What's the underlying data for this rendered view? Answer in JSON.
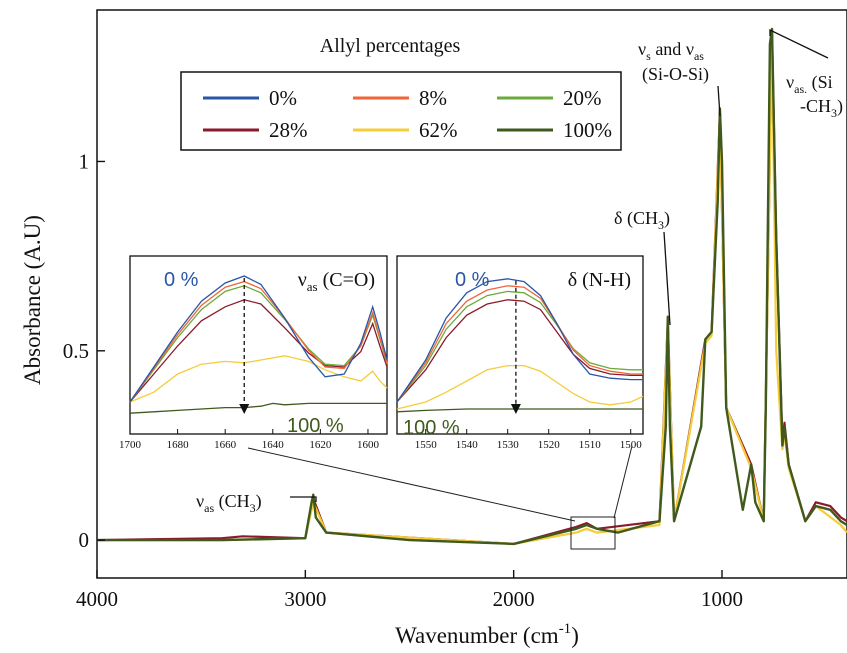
{
  "chart_data": {
    "type": "line",
    "xlabel": "Wavenumber (cm",
    "xlabel_sup": "-1",
    "ylabel": "Absorbance (A.U)",
    "x_reversed": true,
    "xlim": [
      4000,
      400
    ],
    "ylim": [
      -0.1,
      1.4
    ],
    "xticks": [
      4000,
      3000,
      2000,
      1000
    ],
    "yticks": [
      0,
      0.5,
      1
    ],
    "ytick_labels": [
      "0",
      "0.5",
      "1"
    ],
    "legend": {
      "title": "Allyl percentages",
      "placement": "top-center",
      "entries": [
        {
          "label": "0%",
          "color": "#2a56a6"
        },
        {
          "label": "8%",
          "color": "#f0663a"
        },
        {
          "label": "20%",
          "color": "#6aab3c"
        },
        {
          "label": "28%",
          "color": "#8b1a2b"
        },
        {
          "label": "62%",
          "color": "#f5cc3a"
        },
        {
          "label": "100%",
          "color": "#3f5a1c"
        }
      ]
    },
    "annotations": {
      "vas_ch3": {
        "sym": "ν",
        "sub": "as",
        "rest": " (CH",
        "sub2": "3",
        "end": ")"
      },
      "delta_ch3": {
        "sym": "δ",
        "rest": " (CH",
        "sub2": "3",
        "end": ")"
      },
      "vs_vas_line1": {
        "sym": "ν",
        "sub": "s",
        "mid": " and ",
        "sym2": "ν",
        "sub2": "as"
      },
      "vs_vas_line2": "(Si-O-Si)",
      "vas_si_line1": {
        "sym": "ν",
        "sub": "as.",
        "rest": " (Si"
      },
      "vas_si_line2": {
        "pre": "-CH",
        "sub": "3",
        "end": ")"
      }
    },
    "series": [
      {
        "name": "100%",
        "color": "#3f5a1c",
        "x": [
          4000,
          3400,
          3000,
          2970,
          2962,
          2950,
          2900,
          2500,
          2000,
          1700,
          1650,
          1600,
          1500,
          1300,
          1270,
          1260,
          1250,
          1230,
          1100,
          1080,
          1050,
          1020,
          1010,
          1000,
          980,
          900,
          860,
          840,
          800,
          790,
          770,
          760,
          740,
          710,
          700,
          680,
          600,
          550,
          480,
          430,
          400
        ],
        "y": [
          0,
          0,
          0.005,
          0.1,
          0.12,
          0.06,
          0.02,
          0,
          -0.01,
          0.03,
          0.04,
          0.03,
          0.02,
          0.05,
          0.3,
          0.59,
          0.3,
          0.05,
          0.3,
          0.53,
          0.55,
          0.9,
          1.14,
          1.0,
          0.35,
          0.08,
          0.2,
          0.1,
          0.05,
          0.35,
          1.31,
          1.35,
          0.8,
          0.25,
          0.3,
          0.2,
          0.05,
          0.09,
          0.08,
          0.05,
          0.04
        ]
      },
      {
        "name": "62%",
        "color": "#f5cc3a",
        "x": [
          4000,
          3400,
          3000,
          2962,
          2900,
          2000,
          1700,
          1650,
          1600,
          1300,
          1260,
          1230,
          1080,
          1050,
          1010,
          980,
          860,
          800,
          760,
          740,
          710,
          700,
          680,
          600,
          550,
          430,
          400
        ],
        "y": [
          0,
          0,
          0.005,
          0.1,
          0.02,
          -0.01,
          0.02,
          0.03,
          0.02,
          0.04,
          0.57,
          0.05,
          0.52,
          0.54,
          1.12,
          0.35,
          0.19,
          0.05,
          1.33,
          0.5,
          0.24,
          0.28,
          0.19,
          0.05,
          0.09,
          0.04,
          0.02
        ]
      },
      {
        "name": "28%",
        "color": "#8b1a2b",
        "x": [
          4000,
          3400,
          3300,
          3000,
          2962,
          2900,
          2000,
          1700,
          1650,
          1600,
          1300,
          1260,
          1230,
          1080,
          1050,
          1010,
          980,
          860,
          800,
          760,
          740,
          710,
          700,
          680,
          600,
          550,
          480,
          430,
          400
        ],
        "y": [
          0,
          0.005,
          0.01,
          0.005,
          0.11,
          0.02,
          -0.01,
          0.035,
          0.045,
          0.03,
          0.05,
          0.58,
          0.05,
          0.53,
          0.55,
          1.13,
          0.35,
          0.2,
          0.05,
          1.34,
          0.8,
          0.26,
          0.31,
          0.2,
          0.05,
          0.1,
          0.09,
          0.06,
          0.05
        ]
      }
    ],
    "insets": [
      {
        "corner_label": "0 %",
        "end_label": "100 %",
        "title": {
          "sym": "ν",
          "sub": "as",
          "rest": " (C=O)"
        },
        "xlim": [
          1700,
          1592
        ],
        "xticks": [
          1700,
          1680,
          1660,
          1640,
          1620,
          1600
        ],
        "arrow_x": 1652,
        "series": [
          {
            "name": "0%",
            "color": "#2a56a6",
            "x": [
              1700,
              1690,
              1680,
              1670,
              1660,
              1652,
              1645,
              1635,
              1625,
              1618,
              1610,
              1603,
              1598,
              1595,
              1592
            ],
            "y": [
              0.1,
              0.35,
              0.6,
              0.82,
              0.95,
              1.0,
              0.94,
              0.7,
              0.42,
              0.28,
              0.3,
              0.52,
              0.78,
              0.6,
              0.4
            ]
          },
          {
            "name": "8%",
            "color": "#f0663a",
            "x": [
              1700,
              1690,
              1680,
              1670,
              1660,
              1652,
              1645,
              1635,
              1625,
              1618,
              1610,
              1603,
              1598,
              1595,
              1592
            ],
            "y": [
              0.1,
              0.34,
              0.58,
              0.79,
              0.92,
              0.96,
              0.91,
              0.7,
              0.47,
              0.35,
              0.34,
              0.5,
              0.74,
              0.56,
              0.38
            ]
          },
          {
            "name": "20%",
            "color": "#6aab3c",
            "x": [
              1700,
              1690,
              1680,
              1670,
              1660,
              1652,
              1645,
              1635,
              1625,
              1618,
              1610,
              1603,
              1598,
              1595,
              1592
            ],
            "y": [
              0.1,
              0.33,
              0.56,
              0.76,
              0.89,
              0.93,
              0.88,
              0.69,
              0.48,
              0.37,
              0.36,
              0.5,
              0.72,
              0.55,
              0.37
            ]
          },
          {
            "name": "28%",
            "color": "#8b1a2b",
            "x": [
              1700,
              1690,
              1680,
              1670,
              1660,
              1652,
              1645,
              1635,
              1625,
              1618,
              1610,
              1603,
              1598,
              1595,
              1592
            ],
            "y": [
              0.1,
              0.3,
              0.5,
              0.68,
              0.78,
              0.83,
              0.8,
              0.63,
              0.45,
              0.36,
              0.35,
              0.46,
              0.66,
              0.5,
              0.35
            ]
          },
          {
            "name": "62%",
            "color": "#f5cc3a",
            "x": [
              1700,
              1690,
              1680,
              1670,
              1660,
              1652,
              1645,
              1635,
              1625,
              1618,
              1610,
              1603,
              1598,
              1595,
              1592
            ],
            "y": [
              0.1,
              0.17,
              0.3,
              0.37,
              0.39,
              0.38,
              0.4,
              0.43,
              0.39,
              0.33,
              0.28,
              0.25,
              0.32,
              0.25,
              0.2
            ]
          },
          {
            "name": "100%",
            "color": "#3f5a1c",
            "x": [
              1700,
              1690,
              1680,
              1670,
              1660,
              1652,
              1645,
              1640,
              1635,
              1625,
              1618,
              1610,
              1603,
              1598,
              1595,
              1592
            ],
            "y": [
              0.02,
              0.03,
              0.04,
              0.05,
              0.06,
              0.06,
              0.07,
              0.09,
              0.08,
              0.09,
              0.09,
              0.09,
              0.09,
              0.09,
              0.09,
              0.09
            ]
          }
        ]
      },
      {
        "corner_label": "0 %",
        "end_label": "100 %",
        "title": {
          "sym": "δ",
          "rest": " (N-H)"
        },
        "xlim": [
          1557,
          1497
        ],
        "xticks": [
          1550,
          1540,
          1530,
          1520,
          1510,
          1500
        ],
        "arrow_x": 1528,
        "series": [
          {
            "name": "0%",
            "color": "#2a56a6",
            "x": [
              1557,
              1550,
              1545,
              1540,
              1535,
              1530,
              1526,
              1522,
              1518,
              1514,
              1510,
              1505,
              1500,
              1497
            ],
            "y": [
              0.1,
              0.4,
              0.7,
              0.88,
              0.96,
              0.98,
              0.96,
              0.86,
              0.66,
              0.44,
              0.3,
              0.27,
              0.26,
              0.26
            ]
          },
          {
            "name": "8%",
            "color": "#f0663a",
            "x": [
              1557,
              1550,
              1545,
              1540,
              1535,
              1530,
              1526,
              1522,
              1518,
              1514,
              1510,
              1505,
              1500,
              1497
            ],
            "y": [
              0.1,
              0.38,
              0.66,
              0.82,
              0.9,
              0.93,
              0.92,
              0.84,
              0.66,
              0.47,
              0.36,
              0.32,
              0.3,
              0.3
            ]
          },
          {
            "name": "20%",
            "color": "#6aab3c",
            "x": [
              1557,
              1550,
              1545,
              1540,
              1535,
              1530,
              1526,
              1522,
              1518,
              1514,
              1510,
              1505,
              1500,
              1497
            ],
            "y": [
              0.1,
              0.36,
              0.62,
              0.78,
              0.86,
              0.89,
              0.88,
              0.81,
              0.65,
              0.48,
              0.38,
              0.34,
              0.33,
              0.33
            ]
          },
          {
            "name": "28%",
            "color": "#8b1a2b",
            "x": [
              1557,
              1550,
              1545,
              1540,
              1535,
              1530,
              1526,
              1522,
              1518,
              1514,
              1510,
              1505,
              1500,
              1497
            ],
            "y": [
              0.1,
              0.33,
              0.56,
              0.72,
              0.8,
              0.83,
              0.82,
              0.76,
              0.6,
              0.44,
              0.34,
              0.3,
              0.29,
              0.29
            ]
          },
          {
            "name": "62%",
            "color": "#f5cc3a",
            "x": [
              1557,
              1550,
              1545,
              1540,
              1535,
              1530,
              1526,
              1522,
              1518,
              1514,
              1510,
              1505,
              1500,
              1497
            ],
            "y": [
              0.05,
              0.1,
              0.17,
              0.25,
              0.33,
              0.36,
              0.36,
              0.32,
              0.24,
              0.16,
              0.1,
              0.08,
              0.1,
              0.14
            ]
          },
          {
            "name": "100%",
            "color": "#3f5a1c",
            "x": [
              1557,
              1550,
              1540,
              1530,
              1520,
              1510,
              1500,
              1497
            ],
            "y": [
              0.03,
              0.04,
              0.05,
              0.05,
              0.05,
              0.05,
              0.05,
              0.05
            ]
          }
        ]
      }
    ]
  }
}
